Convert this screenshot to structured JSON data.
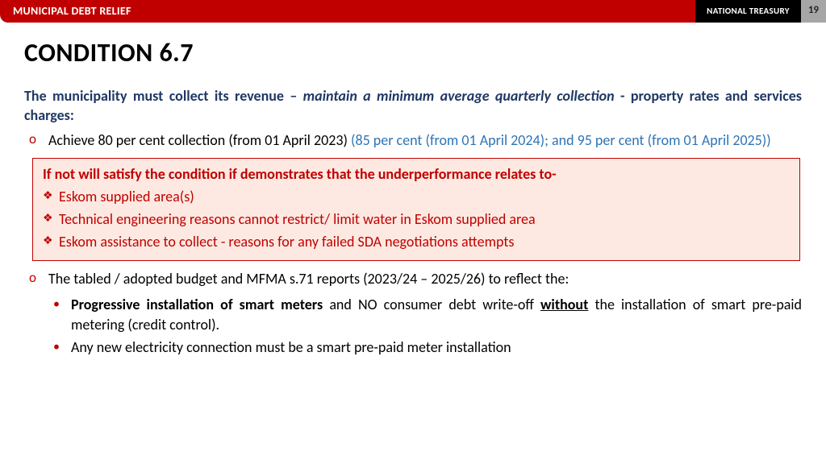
{
  "header": {
    "title": "MUNICIPAL DEBT RELIEF",
    "org": "NATIONAL TREASURY",
    "page": "19"
  },
  "slide": {
    "title": "CONDITION 6.7",
    "lead_pre": "The municipality must collect its revenue – ",
    "lead_ital": "maintain a minimum average quarterly collection",
    "lead_post": " - property rates and services charges:",
    "bullet1_black": "Achieve 80 per cent collection (from 01 April 2023) ",
    "bullet1_blue": "(85 per cent (from 01 April 2024); and 95 per cent (from 01 April 2025))",
    "callout_head": "If not will satisfy the condition if demonstrates that the underperformance relates to-",
    "callout_items": [
      "Eskom supplied area(s)",
      "Technical engineering reasons cannot restrict/ limit water in Eskom supplied area",
      "Eskom assistance to collect - reasons for any failed SDA negotiations attempts"
    ],
    "bullet2": "The tabled / adopted budget and MFMA s.71 reports (2023/24 – 2025/26) to reflect the:",
    "sub1_bold": "Progressive installation of smart meters ",
    "sub1_mid": " and NO consumer debt write-off ",
    "sub1_u": "without",
    "sub1_tail": " the installation of smart pre-paid metering (credit control).",
    "sub2": "Any new electricity connection must be a smart pre-paid meter installation"
  },
  "colors": {
    "brand_red": "#c00000",
    "navy": "#1f3864",
    "link_blue": "#2e74b5",
    "callout_bg": "#fde9e1",
    "page_bg": "#a6a6a6"
  }
}
